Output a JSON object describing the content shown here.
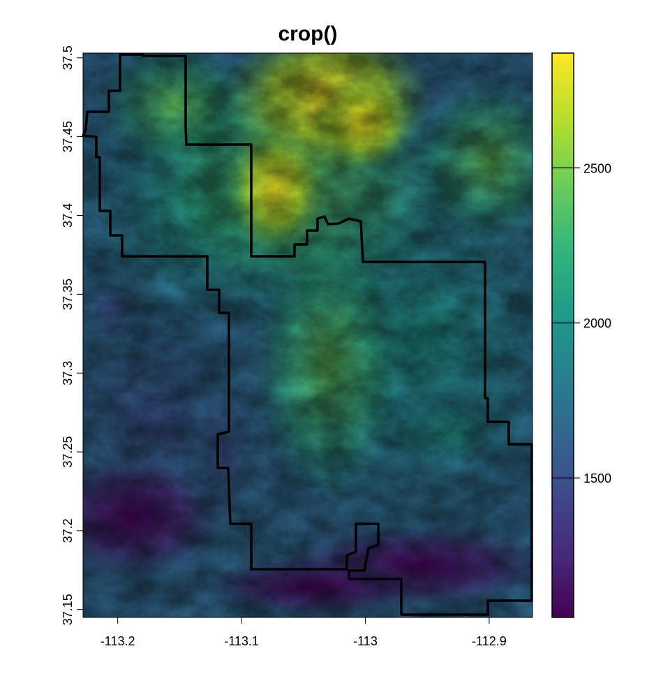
{
  "title": "crop()",
  "map": {
    "x_ticks": [
      "-113.2",
      "-113.1",
      "-113",
      "-112.9"
    ],
    "y_ticks": [
      "37.5",
      "37.45",
      "37.4",
      "37.35",
      "37.3",
      "37.25",
      "37.2",
      "37.15"
    ],
    "extent": {
      "lon": [
        -113.228,
        -112.865
      ],
      "lat": [
        37.145,
        37.503
      ]
    },
    "raster": "elevation (viridis)",
    "boundary_color": "#000000"
  },
  "legend": {
    "ticks": [
      "1500",
      "2000",
      "2500"
    ],
    "range": [
      1050,
      2870
    ],
    "palette": [
      "#440154",
      "#482878",
      "#3E4A89",
      "#31688E",
      "#26828E",
      "#1F9E89",
      "#35B779",
      "#6DCD59",
      "#B4DE2C",
      "#FDE725"
    ]
  }
}
